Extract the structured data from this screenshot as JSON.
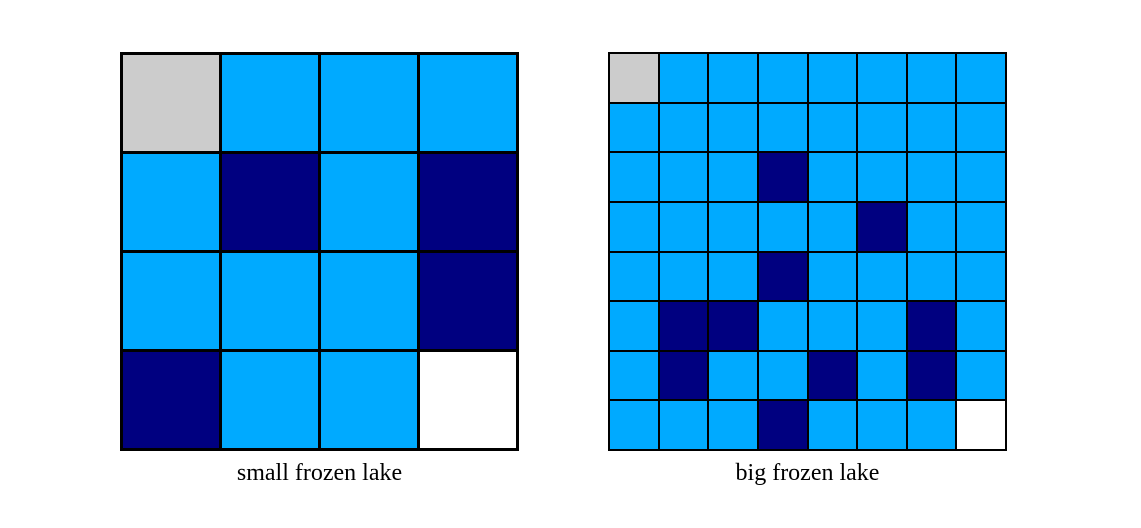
{
  "colors": {
    "start": "#cccccc",
    "frozen": "#00aaff",
    "hole": "#000080",
    "goal": "#ffffff"
  },
  "small_lake": {
    "caption": "small frozen lake",
    "rows": [
      "SFFF",
      "FHFH",
      "FFFH",
      "HFFG"
    ]
  },
  "big_lake": {
    "caption": "big frozen lake",
    "rows": [
      "SFFFFFFF",
      "FFFFFFFF",
      "FFFHFFFF",
      "FFFFFHFF",
      "FFFHFFFF",
      "FHHFFFHF",
      "FHFFHFHF",
      "FFFHFFFG"
    ]
  }
}
